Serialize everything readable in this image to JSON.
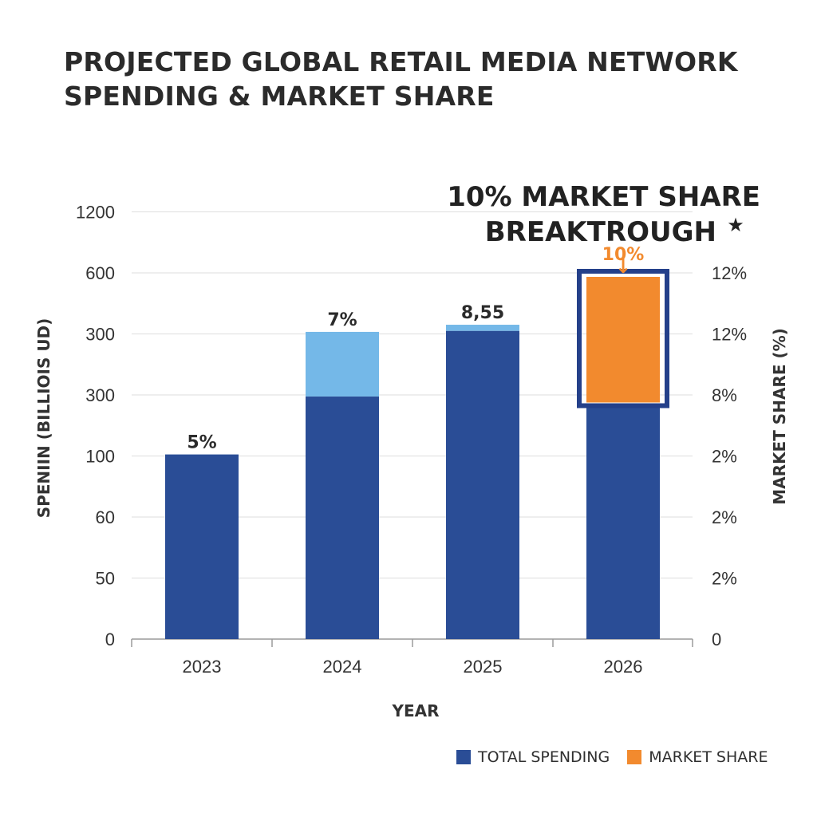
{
  "chart_data": {
    "type": "bar",
    "title": "PROJECTED GLOBAL RETAIL MEDIA NETWORK SPENDING & MARKET SHARE",
    "xlabel": "YEAR",
    "ylabel": "SPENIIN (BILLIOIS UD)",
    "ylabel_right": "MARKET SHARE (%)",
    "categories": [
      "2023",
      "2024",
      "2025",
      "2026"
    ],
    "y_ticks": [
      "0",
      "50",
      "60",
      "100",
      "300",
      "300",
      "600",
      "1200"
    ],
    "y2_ticks": [
      "0",
      "2%",
      "2%",
      "2%",
      "8%",
      "12%",
      "12%"
    ],
    "y_scale": "categorical tick spacing (printed labels are non-linear)",
    "grid": true,
    "series": [
      {
        "name": "TOTAL SPENDING",
        "values": [
          105,
          295,
          315,
          270
        ],
        "color": "#2a4d96"
      },
      {
        "name": "MARKET SHARE",
        "values": [
          50,
          310,
          345,
          600
        ],
        "color": "#f28a2e"
      }
    ],
    "series_notes": "Bar bases are the dark-blue spending segment; the light-blue caps (2023-2025) and the highlighted orange cap (2026) mark the market-share portion.",
    "light_cap_color": "#74b8e8",
    "bar_labels": [
      "5%",
      "7%",
      "8,55",
      "10%"
    ],
    "highlight": {
      "category": "2026",
      "text_line1": "10% MARKET SHARE",
      "text_line2": "BREAKTROUGH",
      "star": "★",
      "arrow": "↓",
      "label_color": "#f28a2e",
      "frame_color": "#24408a"
    },
    "legend_position": "bottom-right"
  }
}
